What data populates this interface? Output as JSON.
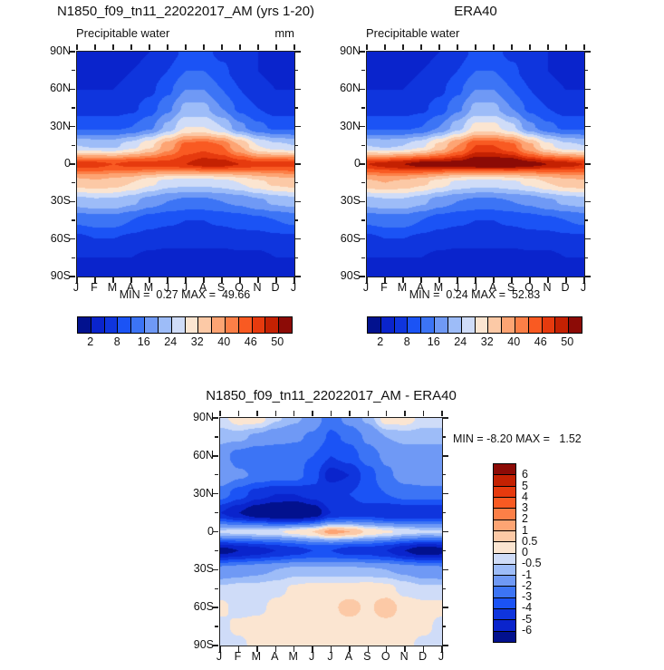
{
  "panels": {
    "model": {
      "title": "N1850_f09_tn11_22022017_AM (yrs 1-20)",
      "subtitle": "Precipitable water",
      "units": "mm",
      "minmax": "MIN =  0.27 MAX =  49.66"
    },
    "era40": {
      "title": "ERA40",
      "subtitle": "Precipitable water",
      "minmax": "MIN =  0.24 MAX =  52.83"
    },
    "diff": {
      "title": "N1850_f09_tn11_22022017_AM - ERA40",
      "minmax": "MIN = -8.20 MAX =   1.52"
    }
  },
  "axes": {
    "lat_labels": [
      "90N",
      "60N",
      "30N",
      "0",
      "30S",
      "60S",
      "90S"
    ],
    "month_labels": [
      "J",
      "F",
      "M",
      "A",
      "M",
      "J",
      "J",
      "A",
      "S",
      "O",
      "N",
      "D",
      "J"
    ]
  },
  "palette": [
    "#02118e",
    "#0a24cc",
    "#0f35dd",
    "#1b53f5",
    "#3c74f5",
    "#6f99f5",
    "#9dbcf8",
    "#cfdcf8",
    "#fbe5d1",
    "#fcc9a6",
    "#fda473",
    "#fc7f47",
    "#f95a22",
    "#e63a0e",
    "#c42102",
    "#8c0b06"
  ],
  "colorbar_top": {
    "labels": [
      "2",
      "8",
      "16",
      "24",
      "32",
      "40",
      "46",
      "50"
    ],
    "boundaries": [
      1,
      3,
      5,
      7,
      9,
      11,
      13,
      15
    ]
  },
  "colorbar_diff": {
    "labels_top_to_bottom": [
      "6",
      "5",
      "4",
      "3",
      "2",
      "1",
      "0.5",
      "0",
      "-0.5",
      "-1",
      "-2",
      "-3",
      "-4",
      "-5",
      "-6"
    ]
  },
  "chart_data": [
    {
      "type": "heatmap",
      "panel": "model",
      "title": "N1850_f09_tn11_22022017_AM (yrs 1-20)",
      "subtitle": "Precipitable water",
      "units": "mm",
      "x_months": [
        "J",
        "F",
        "M",
        "A",
        "M",
        "J",
        "J",
        "A",
        "S",
        "O",
        "N",
        "D",
        "J"
      ],
      "y_lats_deg": [
        90,
        75,
        60,
        45,
        30,
        15,
        0,
        -15,
        -30,
        -45,
        -60,
        -75,
        -90
      ],
      "levels": [
        2,
        4,
        8,
        12,
        16,
        20,
        24,
        28,
        32,
        36,
        40,
        43,
        46,
        48,
        50
      ],
      "min": 0.27,
      "max": 49.66,
      "values": [
        [
          3,
          3,
          3,
          3,
          4,
          6,
          9,
          9,
          7,
          5,
          4,
          3,
          3
        ],
        [
          3,
          3,
          3,
          4,
          5,
          8,
          12,
          12,
          9,
          6,
          4,
          3,
          3
        ],
        [
          4,
          4,
          4,
          5,
          7,
          11,
          16,
          16,
          12,
          8,
          5,
          4,
          4
        ],
        [
          6,
          6,
          6,
          7,
          10,
          15,
          21,
          21,
          16,
          11,
          8,
          6,
          6
        ],
        [
          11,
          11,
          11,
          12,
          15,
          21,
          28,
          28,
          24,
          17,
          13,
          11,
          11
        ],
        [
          24,
          23,
          23,
          26,
          31,
          38,
          44,
          45,
          43,
          36,
          28,
          25,
          24
        ],
        [
          47,
          47,
          46,
          47,
          47,
          47,
          48,
          49,
          49,
          48,
          47,
          47,
          47
        ],
        [
          34,
          35,
          34,
          32,
          29,
          26,
          25,
          25,
          26,
          28,
          31,
          33,
          34
        ],
        [
          22,
          23,
          23,
          21,
          18,
          16,
          15,
          15,
          16,
          17,
          19,
          21,
          22
        ],
        [
          13,
          14,
          14,
          12,
          10,
          9,
          8,
          8,
          9,
          10,
          11,
          12,
          13
        ],
        [
          7,
          8,
          8,
          7,
          6,
          5,
          5,
          5,
          5,
          6,
          6,
          7,
          7
        ],
        [
          4,
          4,
          4,
          4,
          3,
          3,
          3,
          3,
          3,
          3,
          3,
          4,
          4
        ],
        [
          2,
          3,
          3,
          2,
          2,
          2,
          2,
          2,
          2,
          2,
          2,
          2,
          2
        ]
      ]
    },
    {
      "type": "heatmap",
      "panel": "era40",
      "title": "ERA40",
      "subtitle": "Precipitable water",
      "x_months": [
        "J",
        "F",
        "M",
        "A",
        "M",
        "J",
        "J",
        "A",
        "S",
        "O",
        "N",
        "D",
        "J"
      ],
      "y_lats_deg": [
        90,
        75,
        60,
        45,
        30,
        15,
        0,
        -15,
        -30,
        -45,
        -60,
        -75,
        -90
      ],
      "levels": [
        2,
        4,
        8,
        12,
        16,
        20,
        24,
        28,
        32,
        36,
        40,
        43,
        46,
        48,
        50
      ],
      "min": 0.24,
      "max": 52.83,
      "values": [
        [
          3,
          3,
          3,
          3,
          4,
          6,
          9,
          9,
          7,
          5,
          4,
          3,
          3
        ],
        [
          3,
          3,
          3,
          4,
          5,
          8,
          12,
          12,
          9,
          6,
          4,
          3,
          3
        ],
        [
          4,
          4,
          4,
          5,
          7,
          11,
          16,
          16,
          12,
          8,
          5,
          4,
          4
        ],
        [
          6,
          6,
          6,
          7,
          10,
          15,
          21,
          21,
          16,
          11,
          8,
          6,
          6
        ],
        [
          11,
          11,
          11,
          12,
          16,
          22,
          29,
          29,
          25,
          17,
          13,
          11,
          11
        ],
        [
          24,
          23,
          24,
          27,
          33,
          40,
          46,
          46,
          44,
          37,
          29,
          25,
          24
        ],
        [
          48,
          49,
          50,
          51,
          51,
          51,
          52,
          52,
          52,
          51,
          50,
          49,
          48
        ],
        [
          35,
          36,
          35,
          33,
          30,
          27,
          26,
          26,
          27,
          29,
          32,
          34,
          35
        ],
        [
          22,
          23,
          23,
          21,
          18,
          16,
          15,
          15,
          16,
          17,
          19,
          21,
          22
        ],
        [
          13,
          14,
          14,
          12,
          10,
          9,
          8,
          8,
          9,
          10,
          11,
          12,
          13
        ],
        [
          7,
          8,
          8,
          7,
          6,
          5,
          5,
          5,
          5,
          6,
          6,
          7,
          7
        ],
        [
          4,
          4,
          4,
          4,
          3,
          3,
          3,
          3,
          3,
          3,
          3,
          4,
          4
        ],
        [
          2,
          3,
          3,
          2,
          2,
          2,
          2,
          2,
          2,
          2,
          2,
          2,
          2
        ]
      ]
    },
    {
      "type": "heatmap",
      "panel": "diff",
      "title": "N1850_f09_tn11_22022017_AM - ERA40",
      "x_months": [
        "J",
        "F",
        "M",
        "A",
        "M",
        "J",
        "J",
        "A",
        "S",
        "O",
        "N",
        "D",
        "J"
      ],
      "y_lats_deg": [
        90,
        75,
        60,
        45,
        30,
        15,
        0,
        -15,
        -30,
        -45,
        -60,
        -75,
        -90
      ],
      "levels": [
        -6,
        -5,
        -4,
        -3,
        -2,
        -1,
        -0.5,
        0,
        0.5,
        1,
        2,
        3,
        4,
        5,
        6
      ],
      "min": -8.2,
      "max": 1.52,
      "values": [
        [
          -0.2,
          0.3,
          0.3,
          -0.4,
          -0.8,
          -1.4,
          -2.6,
          -1.6,
          -0.8,
          0.3,
          0.3,
          -0.2,
          -0.2
        ],
        [
          -0.8,
          -0.8,
          -1.2,
          -1.5,
          -1.8,
          -2.2,
          -3.2,
          -2.8,
          -1.8,
          -1,
          -0.8,
          -0.8,
          -0.8
        ],
        [
          -1.5,
          -2.5,
          -3,
          -3,
          -2.8,
          -3,
          -4,
          -3.5,
          -2.5,
          -1.8,
          -1.5,
          -1.5,
          -1.5
        ],
        [
          -1.2,
          -1.8,
          -2.2,
          -2.5,
          -2.5,
          -3.5,
          -5.5,
          -5,
          -3.5,
          -2.2,
          -1.6,
          -1.3,
          -1.2
        ],
        [
          -2.5,
          -3.5,
          -4.5,
          -5,
          -5,
          -4.5,
          -4,
          -4,
          -3.5,
          -3,
          -2.5,
          -2.5,
          -2.5
        ],
        [
          -5,
          -6,
          -7,
          -7.5,
          -8,
          -7,
          -5,
          -4.5,
          -4.5,
          -5,
          -5,
          -5,
          -5
        ],
        [
          -0.4,
          -0.3,
          -0.2,
          -0.1,
          0.2,
          0.5,
          1.2,
          1.0,
          0.4,
          0.1,
          -0.2,
          -0.4,
          -0.4
        ],
        [
          -6.5,
          -6,
          -5.5,
          -5,
          -4.5,
          -4,
          -4,
          -4.5,
          -4.5,
          -5,
          -6,
          -6.8,
          -6.5
        ],
        [
          -1.6,
          -1.4,
          -1.2,
          -1,
          -0.8,
          -0.8,
          -0.8,
          -0.8,
          -0.9,
          -1,
          -1.2,
          -1.5,
          -1.6
        ],
        [
          -0.4,
          -0.3,
          -0.3,
          -0.2,
          0.1,
          0.2,
          0.2,
          0.2,
          0.3,
          0.2,
          -0.2,
          -0.4,
          -0.4
        ],
        [
          0.2,
          -0.3,
          -0.2,
          0.2,
          0.3,
          0.3,
          0.4,
          0.7,
          0.4,
          0.8,
          0.3,
          0.2,
          0.2
        ],
        [
          -0.2,
          0.2,
          0.3,
          0.3,
          0.3,
          0.3,
          0.3,
          0.3,
          0.3,
          0.3,
          0.3,
          0.2,
          -0.2
        ],
        [
          -0.2,
          -0.2,
          0.3,
          0.3,
          0.3,
          0.3,
          0.3,
          0.3,
          0.3,
          0.3,
          0.2,
          -0.2,
          -0.2
        ]
      ]
    }
  ]
}
